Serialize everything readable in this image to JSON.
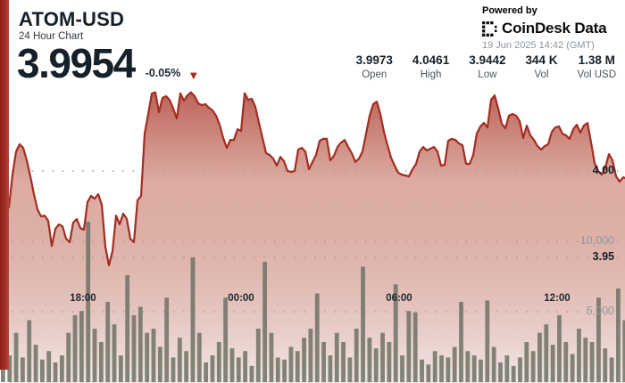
{
  "header": {
    "symbol": "ATOM-USD",
    "subtitle": "24 Hour Chart",
    "price": "3.9954",
    "change": "-0.05%",
    "change_direction": "down"
  },
  "powered_by": {
    "label": "Powered by",
    "brand": "CoinDesk Data",
    "timestamp": "19 Jun 2025 14:42 (GMT)"
  },
  "stats": [
    {
      "value": "3.9973",
      "label": "Open"
    },
    {
      "value": "4.0461",
      "label": "High"
    },
    {
      "value": "3.9442",
      "label": "Low"
    },
    {
      "value": "344 K",
      "label": "Vol"
    },
    {
      "value": "1.38 M",
      "label": "Vol USD"
    }
  ],
  "colors": {
    "accent_red": "#a32d20",
    "line_red": "#a32d20",
    "strip_red": "#9e2b20",
    "volume_bar": "#6e7265",
    "text_dark": "#152029",
    "text_gray": "#8d949b",
    "grid_dot": "#a59b97"
  },
  "chart_data": {
    "type": "area+bar",
    "price_axis": {
      "labels": [
        "4.00",
        "3.95"
      ],
      "gridline_values": [
        4.0,
        3.95
      ],
      "range": [
        3.9442,
        4.0461
      ]
    },
    "volume_axis": {
      "labels": [
        "10,000",
        "5,000"
      ],
      "gridline_values": [
        10000,
        5000
      ],
      "range": [
        0,
        12000
      ]
    },
    "x_axis": {
      "labels": [
        "18:00",
        "00:00",
        "06:00",
        "12:00"
      ]
    },
    "price_series": {
      "name": "ATOM-USD price",
      "points": [
        [
          10,
          3.9789
        ],
        [
          14,
          3.9979
        ],
        [
          18,
          4.0113
        ],
        [
          22,
          4.0155
        ],
        [
          26,
          4.0134
        ],
        [
          30,
          4.0062
        ],
        [
          34,
          3.9969
        ],
        [
          38,
          3.9866
        ],
        [
          42,
          3.9778
        ],
        [
          46,
          3.9737
        ],
        [
          50,
          3.9742
        ],
        [
          54,
          3.9711
        ],
        [
          58,
          3.9567
        ],
        [
          62,
          3.9665
        ],
        [
          66,
          3.9691
        ],
        [
          70,
          3.968
        ],
        [
          74,
          3.9608
        ],
        [
          78,
          3.9588
        ],
        [
          82,
          3.9701
        ],
        [
          86,
          3.9722
        ],
        [
          90,
          3.967
        ],
        [
          94,
          3.966
        ],
        [
          98,
          3.982
        ],
        [
          102,
          3.9856
        ],
        [
          106,
          3.984
        ],
        [
          110,
          3.9866
        ],
        [
          114,
          3.9804
        ],
        [
          118,
          3.9562
        ],
        [
          122,
          3.9454
        ],
        [
          126,
          3.9536
        ],
        [
          130,
          3.9742
        ],
        [
          134,
          3.9691
        ],
        [
          138,
          3.9753
        ],
        [
          142,
          3.9722
        ],
        [
          146,
          3.9608
        ],
        [
          150,
          3.9588
        ],
        [
          154,
          3.983
        ],
        [
          158,
          3.9856
        ],
        [
          162,
          4.0216
        ],
        [
          166,
          4.033
        ],
        [
          170,
          4.0448
        ],
        [
          174,
          4.0455
        ],
        [
          178,
          4.034
        ],
        [
          182,
          4.0423
        ],
        [
          186,
          4.0433
        ],
        [
          190,
          4.0412
        ],
        [
          194,
          4.0361
        ],
        [
          198,
          4.0304
        ],
        [
          202,
          4.045
        ],
        [
          206,
          4.0407
        ],
        [
          210,
          4.0438
        ],
        [
          214,
          4.0455
        ],
        [
          218,
          4.0433
        ],
        [
          222,
          4.0392
        ],
        [
          226,
          4.0381
        ],
        [
          230,
          4.0387
        ],
        [
          234,
          4.0366
        ],
        [
          238,
          4.0351
        ],
        [
          242,
          4.032
        ],
        [
          246,
          4.0268
        ],
        [
          250,
          4.0191
        ],
        [
          254,
          4.0134
        ],
        [
          258,
          4.018
        ],
        [
          262,
          4.018
        ],
        [
          266,
          4.0242
        ],
        [
          270,
          4.0232
        ],
        [
          274,
          4.045
        ],
        [
          278,
          4.0412
        ],
        [
          282,
          4.0418
        ],
        [
          286,
          4.0371
        ],
        [
          290,
          4.0278
        ],
        [
          294,
          4.0191
        ],
        [
          298,
          4.0103
        ],
        [
          302,
          4.0093
        ],
        [
          306,
          4.0072
        ],
        [
          310,
          4.0031
        ],
        [
          314,
          4.0082
        ],
        [
          318,
          4.0057
        ],
        [
          322,
          4.0
        ],
        [
          326,
          3.9995
        ],
        [
          330,
          4.0
        ],
        [
          334,
          4.0124
        ],
        [
          338,
          4.0134
        ],
        [
          342,
          4.0113
        ],
        [
          346,
          4.001
        ],
        [
          350,
          4.0052
        ],
        [
          354,
          4.0093
        ],
        [
          358,
          4.0175
        ],
        [
          362,
          4.0186
        ],
        [
          366,
          4.0186
        ],
        [
          370,
          4.0062
        ],
        [
          374,
          4.0088
        ],
        [
          378,
          4.0139
        ],
        [
          382,
          4.0165
        ],
        [
          386,
          4.018
        ],
        [
          390,
          4.0139
        ],
        [
          394,
          4.0103
        ],
        [
          398,
          4.0052
        ],
        [
          402,
          4.0072
        ],
        [
          406,
          4.0113
        ],
        [
          410,
          4.0216
        ],
        [
          414,
          4.032
        ],
        [
          418,
          4.0387
        ],
        [
          422,
          4.0402
        ],
        [
          426,
          4.033
        ],
        [
          430,
          4.0227
        ],
        [
          434,
          4.0149
        ],
        [
          438,
          4.0077
        ],
        [
          442,
          4.0031
        ],
        [
          446,
          3.999
        ],
        [
          450,
          3.9979
        ],
        [
          454,
          3.9974
        ],
        [
          458,
          3.9969
        ],
        [
          462,
          4.001
        ],
        [
          466,
          4.0041
        ],
        [
          470,
          4.0113
        ],
        [
          474,
          4.0139
        ],
        [
          478,
          4.0119
        ],
        [
          482,
          4.0129
        ],
        [
          486,
          4.0139
        ],
        [
          490,
          4.0113
        ],
        [
          494,
          4.0031
        ],
        [
          498,
          4.0036
        ],
        [
          502,
          4.0175
        ],
        [
          506,
          4.0186
        ],
        [
          510,
          4.018
        ],
        [
          514,
          4.016
        ],
        [
          518,
          4.0149
        ],
        [
          522,
          4.0041
        ],
        [
          526,
          4.0041
        ],
        [
          530,
          4.0093
        ],
        [
          534,
          4.0216
        ],
        [
          538,
          4.0258
        ],
        [
          542,
          4.0278
        ],
        [
          546,
          4.0253
        ],
        [
          550,
          4.0412
        ],
        [
          554,
          4.0438
        ],
        [
          558,
          4.0361
        ],
        [
          562,
          4.0273
        ],
        [
          566,
          4.0247
        ],
        [
          570,
          4.032
        ],
        [
          574,
          4.033
        ],
        [
          578,
          4.032
        ],
        [
          582,
          4.0289
        ],
        [
          586,
          4.0191
        ],
        [
          590,
          4.0263
        ],
        [
          594,
          4.0206
        ],
        [
          598,
          4.018
        ],
        [
          602,
          4.0144
        ],
        [
          606,
          4.0124
        ],
        [
          610,
          4.0144
        ],
        [
          614,
          4.0155
        ],
        [
          618,
          4.0227
        ],
        [
          622,
          4.0253
        ],
        [
          626,
          4.0258
        ],
        [
          630,
          4.0216
        ],
        [
          634,
          4.0206
        ],
        [
          638,
          4.0186
        ],
        [
          642,
          4.0242
        ],
        [
          646,
          4.0268
        ],
        [
          650,
          4.0222
        ],
        [
          654,
          4.0263
        ],
        [
          658,
          4.0278
        ],
        [
          662,
          4.0165
        ],
        [
          666,
          4.0046
        ],
        [
          670,
          4.0
        ],
        [
          674,
          3.9979
        ],
        [
          678,
          4.0021
        ],
        [
          682,
          4.0098
        ],
        [
          686,
          4.0062
        ],
        [
          690,
          3.9969
        ],
        [
          694,
          3.9938
        ],
        [
          698,
          3.9964
        ],
        [
          700,
          3.9959
        ]
      ]
    },
    "volume_series": {
      "name": "Volume",
      "values": [
        2850,
        1900,
        3500,
        1750,
        4400,
        2650,
        1600,
        2200,
        1400,
        1900,
        3500,
        4750,
        5050,
        11400,
        3800,
        2850,
        5700,
        4100,
        1900,
        7600,
        4750,
        5350,
        3500,
        3800,
        2500,
        6000,
        1750,
        3150,
        2200,
        8850,
        3500,
        1400,
        1900,
        2850,
        6000,
        2400,
        1750,
        2200,
        1150,
        3800,
        8550,
        3500,
        1750,
        1600,
        2500,
        2200,
        3150,
        3800,
        6300,
        2850,
        1900,
        3500,
        2850,
        1750,
        3800,
        8200,
        3150,
        2400,
        3500,
        2850,
        6950,
        1900,
        5050,
        4950,
        1600,
        1250,
        2200,
        1900,
        1750,
        2500,
        5700,
        2200,
        1900,
        1600,
        5800,
        2500,
        1400,
        1900,
        1150,
        1750,
        2850,
        2200,
        3500,
        4100,
        2650,
        4750,
        2850,
        2000,
        3800,
        3150,
        2850,
        6000,
        2400,
        1750,
        6650,
        4400
      ]
    }
  }
}
